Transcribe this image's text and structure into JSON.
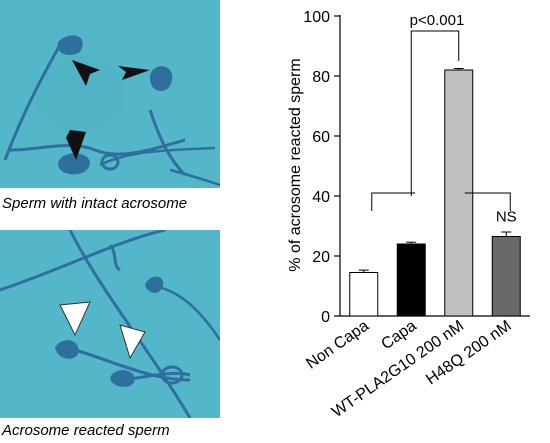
{
  "panels": {
    "top_caption": "Sperm with intact acrosome",
    "bottom_caption": "Acrosome reacted sperm",
    "background_color": "#53b7c9",
    "sperm_color": "#2f6f9e",
    "arrow_top_color": "#111111",
    "arrow_bottom_color": "#ffffff"
  },
  "chart_data": {
    "type": "bar",
    "categories": [
      "Non Capa",
      "Capa",
      "WT-PLA2G10 200 nM",
      "H48Q 200 nM"
    ],
    "values": [
      14.5,
      24,
      82,
      26.5
    ],
    "errors": [
      0.8,
      0.6,
      0.5,
      1.5
    ],
    "bar_colors": [
      "#ffffff",
      "#000000",
      "#c0c0c0",
      "#696969"
    ],
    "ylabel": "% of acrosome reacted sperm",
    "xlabel": "",
    "ylim": [
      0,
      100
    ],
    "yticks": [
      0,
      20,
      40,
      60,
      80,
      100
    ],
    "grid": false,
    "annotations": [
      {
        "text": "p<0.001",
        "from": 1,
        "to": 2
      },
      {
        "text": "NS",
        "from": 2,
        "to": 3
      }
    ]
  }
}
